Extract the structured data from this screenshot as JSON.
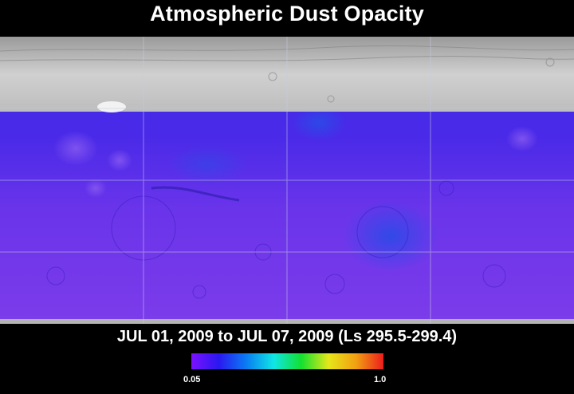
{
  "title": "Atmospheric Dust Opacity",
  "date_range": "JUL 01, 2009 to JUL 07, 2009 (Ls 295.5-299.4)",
  "colorbar": {
    "min_label": "0.05",
    "max_label": "1.0",
    "colors": [
      "#7a12ff",
      "#2a18f0",
      "#0a7cf2",
      "#10e6e6",
      "#12e030",
      "#e6e61a",
      "#f2a012",
      "#ec1d1d"
    ]
  },
  "map": {
    "polar_cap_color": "#c8c8c8",
    "opacity_colors": [
      "#3a28e6",
      "#5b30ea",
      "#7c3cea"
    ]
  }
}
